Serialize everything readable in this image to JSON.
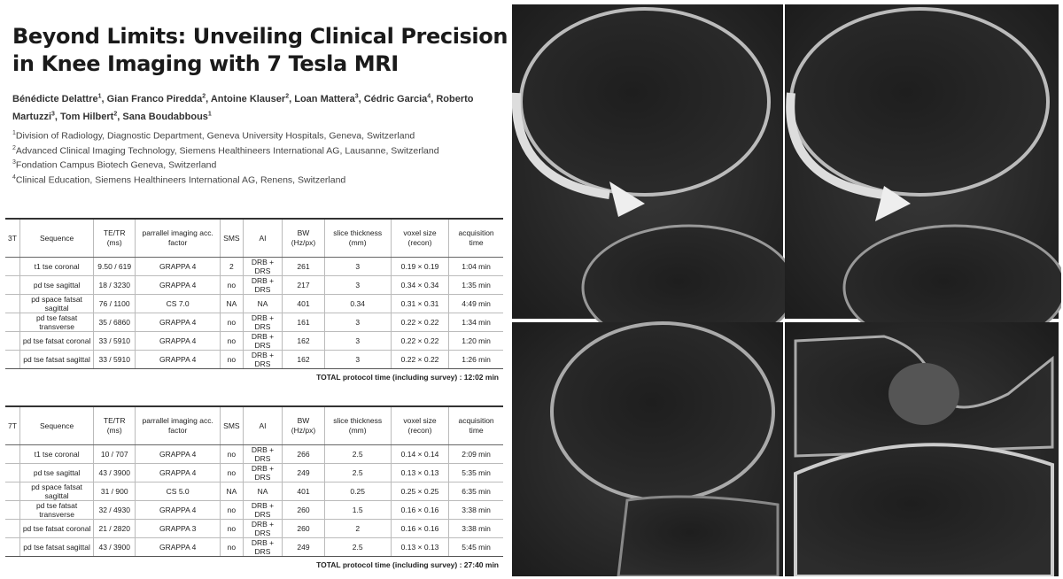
{
  "title": [
    "Beyond Limits: Unveiling Clinical Precision",
    "in Knee Imaging with 7 Tesla MRI"
  ],
  "authors": [
    {
      "name": "Bénédicte Delattre",
      "sup": "1",
      "sep": ","
    },
    {
      "name": "Gian Franco Piredda",
      "sup": "2",
      "sep": ","
    },
    {
      "name": "Antoine Klauser",
      "sup": "2",
      "sep": ","
    },
    {
      "name": "Loan Mattera",
      "sup": "3",
      "sep": ","
    },
    {
      "name": "Cédric Garcia",
      "sup": "4",
      "sep": ","
    },
    {
      "name": "Roberto Martuzzi",
      "sup": "3",
      "sep": ","
    },
    {
      "name": "Tom Hilbert",
      "sup": "2",
      "sep": ","
    },
    {
      "name": "Sana Boudabbous",
      "sup": "1"
    }
  ],
  "affiliations": [
    {
      "sup": "1",
      "text": "Division of Radiology, Diagnostic Department, Geneva University Hospitals, Geneva, Switzerland"
    },
    {
      "sup": "2",
      "text": "Advanced Clinical Imaging Technology, Siemens Healthineers International AG, Lausanne, Switzerland"
    },
    {
      "sup": "3",
      "text": "Fondation Campus Biotech Geneva, Switzerland"
    },
    {
      "sup": "4",
      "text": "Clinical Education, Siemens Healthineers International AG, Renens, Switzerland"
    }
  ],
  "tables": [
    {
      "header": [
        "3T",
        "Sequence",
        "TE/TR (ms)",
        "parrallel imaging acc. factor",
        "SMS",
        "AI",
        "BW (Hz/px)",
        "slice thickness (mm)",
        "voxel size (recon)",
        "acquisition time"
      ],
      "rows": [
        [
          "t1 tse coronal",
          "9.50 / 619",
          "GRAPPA 4",
          "2",
          "DRB + DRS",
          "261",
          "3",
          "0.19 × 0.19",
          "1:04 min"
        ],
        [
          "pd tse sagittal",
          "18 / 3230",
          "GRAPPA 4",
          "no",
          "DRB + DRS",
          "217",
          "3",
          "0.34 × 0.34",
          "1:35 min"
        ],
        [
          "pd space fatsat sagittal",
          "76 / 1100",
          "CS 7.0",
          "NA",
          "NA",
          "401",
          "0.34",
          "0.31 × 0.31",
          "4:49 min"
        ],
        [
          "pd tse fatsat transverse",
          "35 / 6860",
          "GRAPPA 4",
          "no",
          "DRB + DRS",
          "161",
          "3",
          "0.22 × 0.22",
          "1:34 min"
        ],
        [
          "pd tse fatsat coronal",
          "33 / 5910",
          "GRAPPA 4",
          "no",
          "DRB + DRS",
          "162",
          "3",
          "0.22 × 0.22",
          "1:20 min"
        ],
        [
          "pd tse fatsat sagittal",
          "33 / 5910",
          "GRAPPA 4",
          "no",
          "DRB + DRS",
          "162",
          "3",
          "0.22 × 0.22",
          "1:26 min"
        ]
      ],
      "total": "TOTAL protocol time (including survey) : 12:02 min"
    },
    {
      "header": [
        "7T",
        "Sequence",
        "TE/TR (ms)",
        "parrallel imaging acc. factor",
        "SMS",
        "AI",
        "BW (Hz/px)",
        "slice thickness (mm)",
        "voxel size (recon)",
        "acquisition time"
      ],
      "rows": [
        [
          "t1 tse coronal",
          "10 / 707",
          "GRAPPA 4",
          "no",
          "DRB + DRS",
          "266",
          "2.5",
          "0.14 × 0.14",
          "2:09 min"
        ],
        [
          "pd tse sagittal",
          "43 / 3900",
          "GRAPPA 4",
          "no",
          "DRB + DRS",
          "249",
          "2.5",
          "0.13 × 0.13",
          "5:35 min"
        ],
        [
          "pd space fatsat sagittal",
          "31 / 900",
          "CS 5.0",
          "NA",
          "NA",
          "401",
          "0.25",
          "0.25 × 0.25",
          "6:35 min"
        ],
        [
          "pd tse fatsat transverse",
          "32 / 4930",
          "GRAPPA 4",
          "no",
          "DRB + DRS",
          "260",
          "1.5",
          "0.16 × 0.16",
          "3:38 min"
        ],
        [
          "pd tse fatsat coronal",
          "21 / 2820",
          "GRAPPA 3",
          "no",
          "DRB + DRS",
          "260",
          "2",
          "0.16 × 0.16",
          "3:38 min"
        ],
        [
          "pd tse fatsat sagittal",
          "43 / 3900",
          "GRAPPA 4",
          "no",
          "DRB + DRS",
          "249",
          "2.5",
          "0.13 × 0.13",
          "5:45 min"
        ]
      ],
      "total": "TOTAL protocol time (including survey) : 27:40 min"
    }
  ]
}
